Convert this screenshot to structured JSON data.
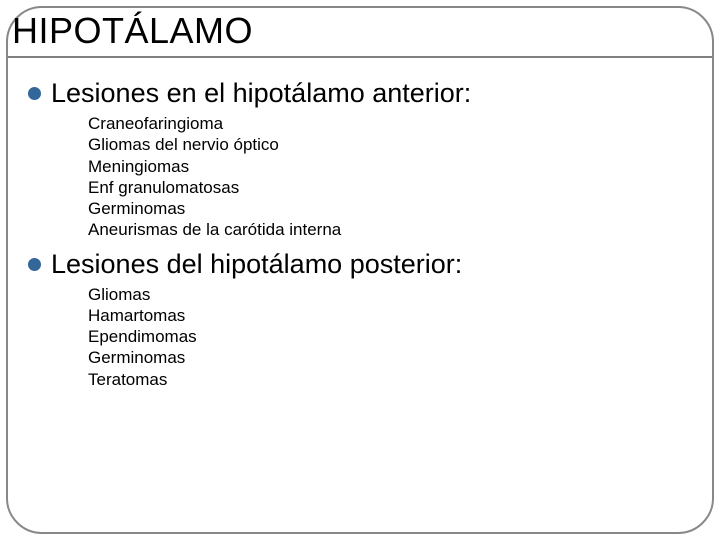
{
  "title": "HIPOTÁLAMO",
  "bullet_color": "#336699",
  "underline_color": "#808080",
  "frame_border_color": "#888888",
  "text_color": "#000000",
  "background_color": "#ffffff",
  "title_fontsize": 36,
  "section_fontsize": 27,
  "subitem_fontsize": 17,
  "sections": [
    {
      "heading": "Lesiones en el hipotálamo anterior:",
      "items": [
        "Craneofaringioma",
        "Gliomas del nervio óptico",
        "Meningiomas",
        "Enf granulomatosas",
        "Germinomas",
        "Aneurismas de la carótida interna"
      ]
    },
    {
      "heading": "Lesiones del hipotálamo posterior:",
      "items": [
        "Gliomas",
        "Hamartomas",
        "Ependimomas",
        "Germinomas",
        "Teratomas"
      ]
    }
  ]
}
